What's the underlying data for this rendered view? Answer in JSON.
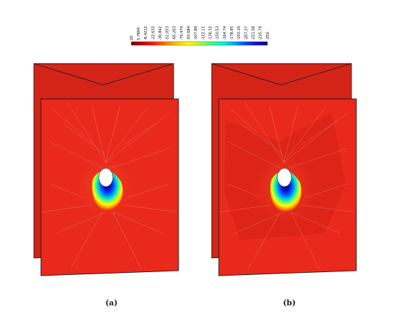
{
  "colorbar": {
    "tick_labels": [
      "20",
      "5.7894",
      "-8.4212",
      "-22.632",
      "-36.842",
      "-51.053",
      "-65.263",
      "-79.474",
      "-93.684",
      "-107.89",
      "-122.11",
      "-136.32",
      "-150.53",
      "-164.74",
      "-178.95",
      "-193.16",
      "-207.37",
      "-221.58",
      "-235.79",
      "-250"
    ],
    "colors": [
      "#7a0000",
      "#c80000",
      "#ff2000",
      "#ff7a00",
      "#ffc800",
      "#ffff00",
      "#b0ff30",
      "#40ff80",
      "#00ffd0",
      "#00b0ff",
      "#0050ff",
      "#1010d0",
      "#0a0a90"
    ]
  },
  "panels": [
    {
      "caption": "(a)"
    },
    {
      "caption": "(b)"
    }
  ],
  "colors": {
    "field": "#e8291b",
    "field_dark": "#c81e12",
    "edge": "#1a1a1a",
    "mesh": "#f4c9c4"
  }
}
